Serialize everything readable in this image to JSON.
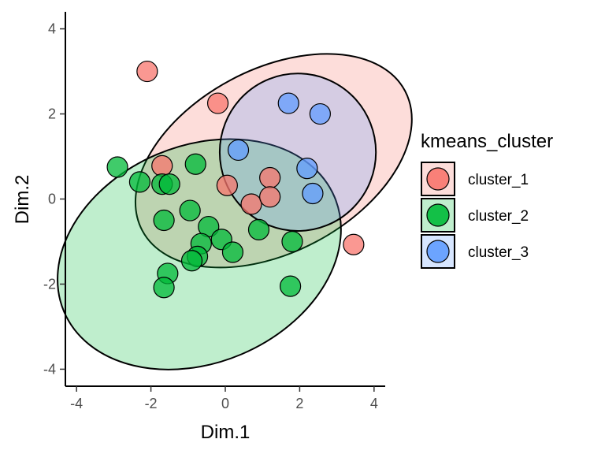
{
  "chart_data": {
    "type": "scatter",
    "xlabel": "Dim.1",
    "ylabel": "Dim.2",
    "xlim": [
      -4.3,
      4.3
    ],
    "ylim": [
      -4.4,
      4.4
    ],
    "x_ticks": [
      -4,
      -2,
      0,
      2,
      4
    ],
    "y_ticks": [
      -4,
      -2,
      0,
      2,
      4
    ],
    "x_tick_labels": [
      "-4",
      "-2",
      "0",
      "2",
      "4"
    ],
    "y_tick_labels": [
      "-4",
      "-2",
      "0",
      "2",
      "4"
    ],
    "grid": false,
    "legend": {
      "title": "kmeans_cluster",
      "placement": "right"
    },
    "series": [
      {
        "name": "cluster_1",
        "color": "#F8766D",
        "points": [
          [
            -2.1,
            3.0
          ],
          [
            -0.2,
            2.25
          ],
          [
            -1.7,
            0.78
          ],
          [
            0.05,
            0.32
          ],
          [
            1.2,
            0.5
          ],
          [
            0.7,
            -0.12
          ],
          [
            1.2,
            0.05
          ],
          [
            3.45,
            -1.07
          ]
        ],
        "ellipse": {
          "center": [
            1.3,
            0.9
          ],
          "rx": 4.0,
          "ry": 2.15,
          "angle_deg": -28
        }
      },
      {
        "name": "cluster_2",
        "color": "#00BA38",
        "points": [
          [
            -2.9,
            0.75
          ],
          [
            -2.3,
            0.4
          ],
          [
            -1.7,
            0.35
          ],
          [
            -1.5,
            0.35
          ],
          [
            -0.8,
            0.82
          ],
          [
            -1.65,
            -0.5
          ],
          [
            -0.95,
            -0.27
          ],
          [
            -0.45,
            -0.65
          ],
          [
            -0.1,
            -0.95
          ],
          [
            0.2,
            -1.25
          ],
          [
            -0.65,
            -1.05
          ],
          [
            -0.75,
            -1.35
          ],
          [
            -0.9,
            -1.45
          ],
          [
            -1.55,
            -1.75
          ],
          [
            -1.65,
            -2.08
          ],
          [
            0.9,
            -0.72
          ],
          [
            1.8,
            -1.0
          ],
          [
            1.75,
            -2.05
          ]
        ],
        "ellipse": {
          "center": [
            -0.7,
            -1.3
          ],
          "rx": 3.95,
          "ry": 2.55,
          "angle_deg": -23
        }
      },
      {
        "name": "cluster_3",
        "color": "#619CFF",
        "points": [
          [
            1.7,
            2.25
          ],
          [
            2.55,
            2.0
          ],
          [
            0.35,
            1.15
          ],
          [
            2.2,
            0.72
          ],
          [
            2.35,
            0.13
          ]
        ],
        "ellipse": {
          "center": [
            1.95,
            1.1
          ],
          "rx": 2.1,
          "ry": 1.85,
          "angle_deg": 0
        }
      }
    ]
  }
}
